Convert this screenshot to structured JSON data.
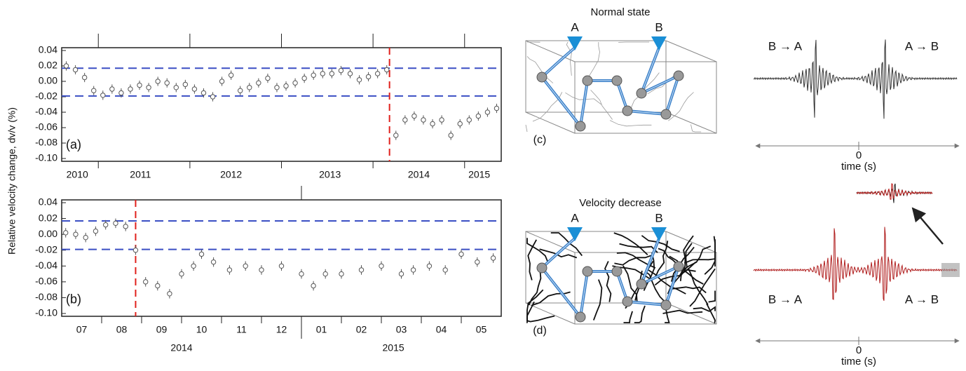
{
  "chart_data": [
    {
      "type": "scatter",
      "y_label": "Relative velocity change, dv/v (%)",
      "panel_label": "(a)",
      "x": [
        2010.65,
        2010.75,
        2010.85,
        2010.95,
        2011.05,
        2011.15,
        2011.25,
        2011.35,
        2011.45,
        2011.55,
        2011.65,
        2011.75,
        2011.85,
        2011.95,
        2012.05,
        2012.15,
        2012.25,
        2012.35,
        2012.45,
        2012.55,
        2012.65,
        2012.75,
        2012.85,
        2012.95,
        2013.05,
        2013.15,
        2013.25,
        2013.35,
        2013.45,
        2013.55,
        2013.65,
        2013.75,
        2013.85,
        2013.95,
        2014.05,
        2014.15,
        2014.25,
        2014.35,
        2014.45,
        2014.55,
        2014.65,
        2014.75,
        2014.85,
        2014.95,
        2015.05,
        2015.15,
        2015.25,
        2015.35
      ],
      "values": [
        0.02,
        0.015,
        0.005,
        -0.012,
        -0.018,
        -0.01,
        -0.015,
        -0.01,
        -0.005,
        -0.008,
        0.0,
        -0.002,
        -0.008,
        -0.004,
        -0.01,
        -0.015,
        -0.02,
        0.0,
        0.008,
        -0.012,
        -0.008,
        -0.002,
        0.004,
        -0.008,
        -0.006,
        -0.002,
        0.004,
        0.008,
        0.01,
        0.01,
        0.014,
        0.01,
        0.002,
        0.006,
        0.01,
        0.015,
        -0.07,
        -0.05,
        -0.045,
        -0.05,
        -0.055,
        -0.05,
        -0.07,
        -0.055,
        -0.05,
        -0.045,
        -0.04,
        -0.035
      ],
      "error": 0.006,
      "color": "#555555",
      "xlim": [
        2010.6,
        2015.4
      ],
      "ylim": [
        -0.1,
        0.04
      ],
      "yticks": [
        0.04,
        0.02,
        {
          "value": 0,
          "label": "0.00"
        },
        -0.02,
        -0.04,
        -0.06,
        -0.08,
        {
          "value": -0.1,
          "label": "-0.10"
        }
      ],
      "xticks": [
        {
          "value": 2010.77,
          "label": "2010"
        },
        {
          "value": 2011.46,
          "label": "2011"
        },
        {
          "value": 2012.45,
          "label": "2012"
        },
        {
          "value": 2013.53,
          "label": "2013"
        },
        {
          "value": 2014.5,
          "label": "2014"
        },
        {
          "value": 2015.16,
          "label": "2015"
        }
      ],
      "boundaries": [
        2011,
        2012,
        2013,
        2014,
        2015
      ],
      "reference_lines": [
        0.017,
        -0.019
      ],
      "reference_color": "#3b4fc4",
      "event_x": 2014.18,
      "event_color": "#e0201b"
    },
    {
      "type": "scatter",
      "panel_label": "(b)",
      "x": [
        0.1,
        0.35,
        0.6,
        0.85,
        1.1,
        1.35,
        1.6,
        1.85,
        2.1,
        2.4,
        2.7,
        3.0,
        3.3,
        3.5,
        3.8,
        4.2,
        4.6,
        5.0,
        5.5,
        6.0,
        6.3,
        6.6,
        7.0,
        7.5,
        8.0,
        8.5,
        8.8,
        9.2,
        9.6,
        10.0,
        10.4,
        10.8
      ],
      "values": [
        0.002,
        0.0,
        -0.004,
        0.004,
        0.012,
        0.014,
        0.01,
        -0.02,
        -0.06,
        -0.065,
        -0.075,
        -0.05,
        -0.04,
        -0.025,
        -0.035,
        -0.045,
        -0.04,
        -0.045,
        -0.04,
        -0.05,
        -0.065,
        -0.05,
        -0.05,
        -0.045,
        -0.04,
        -0.05,
        -0.045,
        -0.04,
        -0.045,
        -0.025,
        -0.035,
        -0.03
      ],
      "error": 0.006,
      "color": "#555555",
      "xlim": [
        0,
        11
      ],
      "ylim": [
        -0.1,
        0.04
      ],
      "yticks": [
        0.04,
        0.02,
        {
          "value": 0,
          "label": "0.00"
        },
        -0.02,
        -0.04,
        -0.06,
        -0.08,
        {
          "value": -0.1,
          "label": "-0.10"
        }
      ],
      "xticks": [
        {
          "value": 0.5,
          "label": "07"
        },
        {
          "value": 1.5,
          "label": "08"
        },
        {
          "value": 2.5,
          "label": "09"
        },
        {
          "value": 3.5,
          "label": "10"
        },
        {
          "value": 4.5,
          "label": "11"
        },
        {
          "value": 5.5,
          "label": "12"
        },
        {
          "value": 6.5,
          "label": "01"
        },
        {
          "value": 7.5,
          "label": "02"
        },
        {
          "value": 8.5,
          "label": "03"
        },
        {
          "value": 9.5,
          "label": "04"
        },
        {
          "value": 10.5,
          "label": "05"
        }
      ],
      "boundaries": [
        1,
        2,
        3,
        4,
        5,
        6,
        7,
        8,
        9,
        10
      ],
      "year_labels": [
        {
          "value": 3,
          "label": "2014"
        },
        {
          "value": 8.3,
          "label": "2015"
        }
      ],
      "year_divider": 6,
      "reference_lines": [
        0.017,
        -0.019
      ],
      "reference_color": "#3b4fc4",
      "event_x": 1.85,
      "event_color": "#e0201b"
    }
  ],
  "diagrams": [
    {
      "title": "Normal state",
      "label": "(c)",
      "station_a": "A",
      "station_b": "B"
    },
    {
      "title": "Velocity decrease",
      "label": "(d)",
      "station_a": "A",
      "station_b": "B"
    }
  ],
  "waveforms": [
    {
      "left_label": "B → A",
      "right_label": "A → B",
      "zero_label": "0",
      "x_label": "time (s)"
    },
    {
      "left_label": "B → A",
      "right_label": "A → B",
      "zero_label": "0",
      "x_label": "time (s)"
    }
  ]
}
